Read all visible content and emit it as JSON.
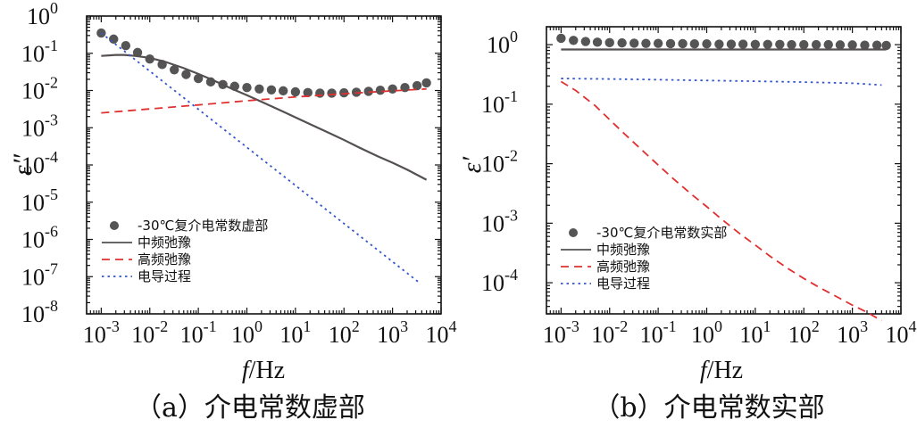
{
  "chart_data": [
    {
      "type": "line",
      "panel_caption": "（a）介电常数虚部",
      "xlabel": {
        "italic": "f",
        "rest": "/Hz"
      },
      "ylabel": "ε″",
      "xscale": "log",
      "yscale": "log",
      "xlim": [
        0.0005,
        10000
      ],
      "ylim": [
        1e-08,
        1
      ],
      "xticks_exp": [
        -3,
        -2,
        -1,
        0,
        1,
        2,
        3,
        4
      ],
      "yticks_exp": [
        -8,
        -7,
        -6,
        -5,
        -4,
        -3,
        -2,
        -1,
        0
      ],
      "legend_position": "lower-left",
      "legend": [
        "-30℃复介电常数虚部",
        "中频弛豫",
        "高频弛豫",
        "电导过程"
      ],
      "series": [
        {
          "name": "-30℃复介电常数虚部",
          "style": "markers",
          "color": "#555555",
          "x": [
            0.001,
            0.0018,
            0.0032,
            0.0056,
            0.01,
            0.018,
            0.032,
            0.056,
            0.1,
            0.18,
            0.32,
            0.56,
            1,
            1.8,
            3.2,
            5.6,
            10,
            18,
            32,
            56,
            100,
            180,
            320,
            560,
            1000,
            1800,
            3200,
            5000
          ],
          "y": [
            0.35,
            0.24,
            0.16,
            0.105,
            0.07,
            0.05,
            0.036,
            0.027,
            0.021,
            0.017,
            0.0145,
            0.013,
            0.012,
            0.011,
            0.0104,
            0.0098,
            0.0092,
            0.0088,
            0.0085,
            0.0085,
            0.0087,
            0.009,
            0.0095,
            0.0102,
            0.011,
            0.012,
            0.0135,
            0.016
          ]
        },
        {
          "name": "中频弛豫",
          "style": "solid",
          "color": "#555050",
          "x": [
            0.001,
            0.002,
            0.003,
            0.005,
            0.01,
            0.02,
            0.05,
            0.1,
            0.2,
            0.5,
            1,
            2,
            5,
            10,
            20,
            50,
            100,
            200,
            500,
            1000,
            2000,
            5000
          ],
          "y": [
            0.085,
            0.09,
            0.09,
            0.085,
            0.075,
            0.06,
            0.04,
            0.028,
            0.019,
            0.011,
            0.0075,
            0.005,
            0.0029,
            0.0019,
            0.00125,
            0.00072,
            0.00047,
            0.0003,
            0.00017,
            0.000115,
            7.5e-05,
            4e-05
          ]
        },
        {
          "name": "高频弛豫",
          "style": "dashed",
          "color": "#e03030",
          "x": [
            0.001,
            0.01,
            0.1,
            1,
            10,
            100,
            1000,
            5000
          ],
          "y": [
            0.0025,
            0.0032,
            0.0041,
            0.0053,
            0.0067,
            0.0082,
            0.0098,
            0.011
          ]
        },
        {
          "name": "电导过程",
          "style": "dotted",
          "color": "#3355cc",
          "x": [
            0.001,
            3500
          ],
          "y": [
            0.35,
            7e-08
          ]
        }
      ]
    },
    {
      "type": "line",
      "panel_caption": "（b）介电常数实部",
      "xlabel": {
        "italic": "f",
        "rest": "/Hz"
      },
      "ylabel": "ε′",
      "xscale": "log",
      "yscale": "log",
      "xlim": [
        0.0005,
        10000
      ],
      "ylim": [
        3e-05,
        2
      ],
      "xticks_exp": [
        -3,
        -2,
        -1,
        0,
        1,
        2,
        3,
        4
      ],
      "yticks_exp": [
        -4,
        -3,
        -2,
        -1,
        0
      ],
      "legend_position": "lower-left",
      "legend": [
        "-30℃复介电常数实部",
        "中频弛豫",
        "高频弛豫",
        "电导过程"
      ],
      "series": [
        {
          "name": "-30℃复介电常数实部",
          "style": "markers",
          "color": "#555555",
          "x": [
            0.001,
            0.0018,
            0.0032,
            0.0056,
            0.01,
            0.018,
            0.032,
            0.056,
            0.1,
            0.18,
            0.32,
            0.56,
            1,
            1.8,
            3.2,
            5.6,
            10,
            18,
            32,
            56,
            100,
            180,
            320,
            560,
            1000,
            1800,
            3200,
            5000
          ],
          "y": [
            1.28,
            1.18,
            1.13,
            1.1,
            1.08,
            1.07,
            1.06,
            1.05,
            1.05,
            1.04,
            1.04,
            1.03,
            1.03,
            1.02,
            1.02,
            1.02,
            1.01,
            1.01,
            1.01,
            1.0,
            1.0,
            1.0,
            1.0,
            0.99,
            0.99,
            0.98,
            0.98,
            0.97
          ]
        },
        {
          "name": "中频弛豫",
          "style": "solid",
          "color": "#555050",
          "x": [
            0.001,
            5000
          ],
          "y": [
            0.83,
            0.83
          ]
        },
        {
          "name": "高频弛豫",
          "style": "dashed",
          "color": "#e03030",
          "x": [
            0.001,
            0.002,
            0.005,
            0.01,
            0.02,
            0.05,
            0.1,
            0.2,
            0.5,
            1,
            2,
            5,
            10,
            20,
            50,
            100,
            200,
            500,
            1000,
            2000,
            4000
          ],
          "y": [
            0.24,
            0.17,
            0.095,
            0.055,
            0.032,
            0.016,
            0.0095,
            0.0057,
            0.003,
            0.0019,
            0.00118,
            0.00065,
            0.00043,
            0.00028,
            0.000168,
            0.000118,
            8.5e-05,
            5.7e-05,
            4.2e-05,
            3.2e-05,
            2.3e-05
          ]
        },
        {
          "name": "电导过程",
          "style": "dotted",
          "color": "#3355cc",
          "x": [
            0.001,
            0.01,
            0.1,
            1,
            10,
            100,
            1000,
            4000
          ],
          "y": [
            0.27,
            0.265,
            0.258,
            0.25,
            0.243,
            0.235,
            0.225,
            0.21
          ]
        }
      ]
    }
  ]
}
